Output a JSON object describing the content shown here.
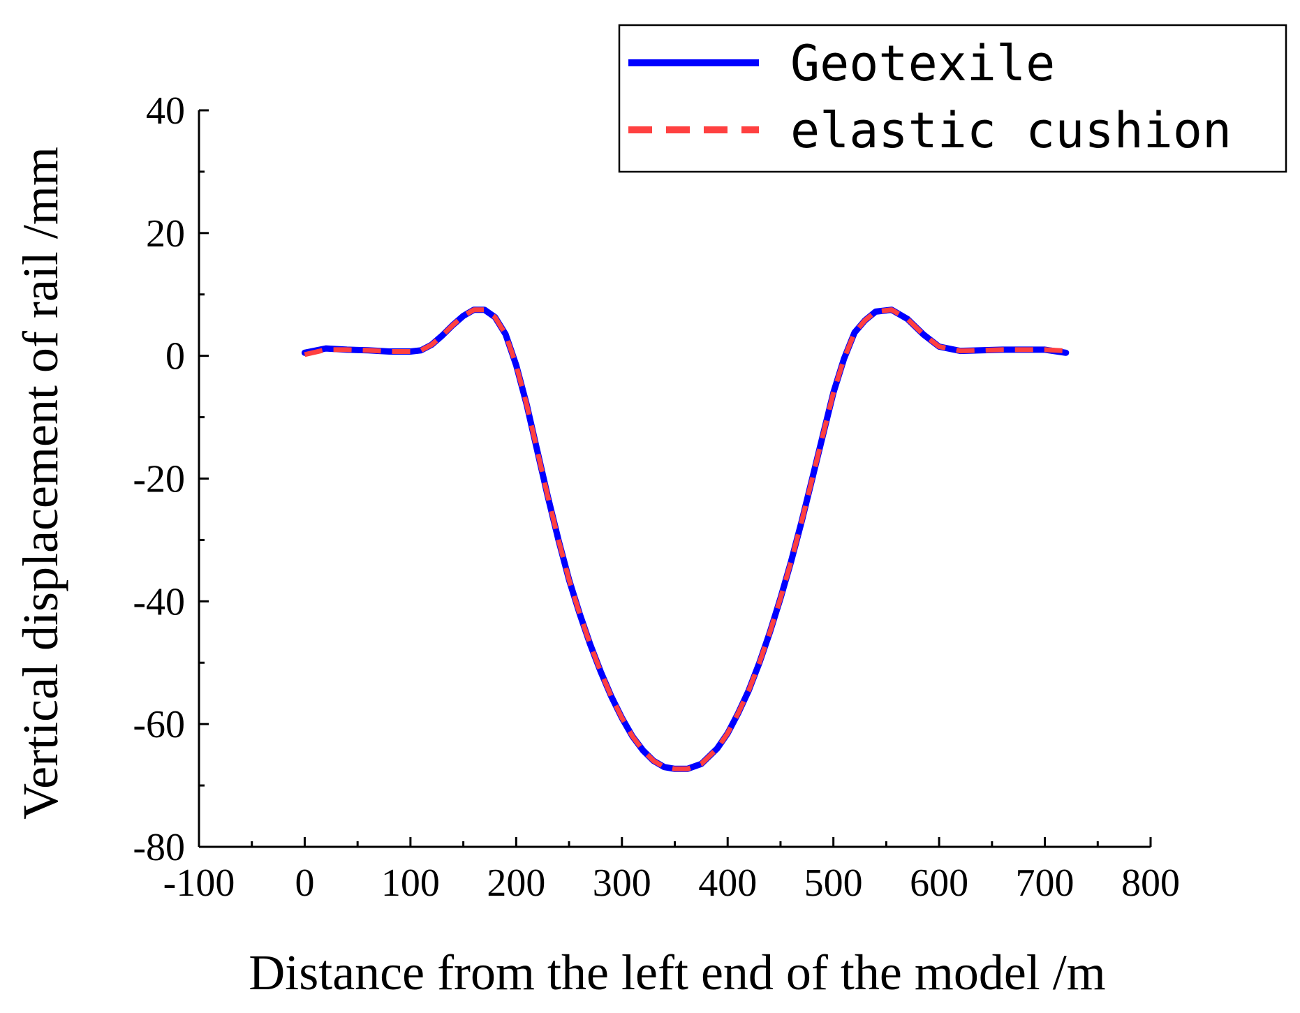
{
  "chart_data": {
    "type": "line",
    "xlabel": "Distance from the left end of the model /m",
    "ylabel": "Vertical displacement of rail /mm",
    "xlim": [
      -100,
      800
    ],
    "ylim": [
      -80,
      40
    ],
    "x_ticks": [
      -100,
      0,
      100,
      200,
      300,
      400,
      500,
      600,
      700,
      800
    ],
    "y_ticks": [
      40,
      20,
      0,
      -20,
      -40,
      -60,
      -80
    ],
    "x_tick_labels": [
      "-100",
      "0",
      "100",
      "200",
      "300",
      "400",
      "500",
      "600",
      "700",
      "800"
    ],
    "y_tick_labels": [
      "40",
      "20",
      "0",
      "-20",
      "-40",
      "-60",
      "-80"
    ],
    "grid": false,
    "legend_position": "top-right",
    "series": [
      {
        "name": "Geotexile",
        "color": "#0000ff",
        "style": "solid",
        "x": [
          0,
          20,
          40,
          60,
          80,
          100,
          110,
          120,
          130,
          140,
          150,
          160,
          170,
          180,
          190,
          200,
          210,
          220,
          230,
          240,
          250,
          260,
          270,
          280,
          290,
          300,
          310,
          320,
          330,
          340,
          350,
          362,
          375,
          390,
          400,
          410,
          420,
          430,
          440,
          450,
          460,
          470,
          480,
          490,
          500,
          510,
          520,
          530,
          540,
          555,
          570,
          585,
          600,
          620,
          640,
          660,
          680,
          700,
          720
        ],
        "y": [
          0.5,
          1.2,
          1.0,
          0.9,
          0.7,
          0.7,
          0.9,
          1.8,
          3.3,
          5.0,
          6.5,
          7.5,
          7.5,
          6.3,
          3.5,
          -1.5,
          -8.0,
          -15.5,
          -23.0,
          -30.0,
          -36.5,
          -42.0,
          -47.0,
          -51.5,
          -55.5,
          -59.0,
          -62.0,
          -64.3,
          -66.0,
          -67.0,
          -67.3,
          -67.3,
          -66.5,
          -64.0,
          -61.5,
          -58.2,
          -54.5,
          -50.0,
          -45.0,
          -39.5,
          -33.5,
          -27.0,
          -20.0,
          -13.0,
          -6.0,
          -0.5,
          3.8,
          5.8,
          7.2,
          7.5,
          6.0,
          3.5,
          1.5,
          0.8,
          0.9,
          1.0,
          1.0,
          1.0,
          0.5
        ]
      },
      {
        "name": "elastic cushion",
        "color": "#ff4040",
        "style": "dashed",
        "x": [
          0,
          20,
          40,
          60,
          80,
          100,
          110,
          120,
          130,
          140,
          150,
          160,
          170,
          180,
          190,
          200,
          210,
          220,
          230,
          240,
          250,
          260,
          270,
          280,
          290,
          300,
          310,
          320,
          330,
          340,
          350,
          362,
          375,
          390,
          400,
          410,
          420,
          430,
          440,
          450,
          460,
          470,
          480,
          490,
          500,
          510,
          520,
          530,
          540,
          555,
          570,
          585,
          600,
          620,
          640,
          660,
          680,
          700,
          720
        ],
        "y": [
          0.2,
          1.0,
          1.0,
          0.9,
          0.7,
          0.7,
          0.9,
          1.8,
          3.3,
          5.0,
          6.5,
          7.5,
          7.5,
          6.3,
          3.5,
          -1.5,
          -8.0,
          -15.5,
          -23.0,
          -30.0,
          -36.5,
          -42.0,
          -47.0,
          -51.5,
          -55.5,
          -59.0,
          -62.0,
          -64.3,
          -66.0,
          -67.0,
          -67.3,
          -67.3,
          -66.5,
          -64.0,
          -61.5,
          -58.2,
          -54.5,
          -50.0,
          -45.0,
          -39.5,
          -33.5,
          -27.0,
          -20.0,
          -13.0,
          -6.0,
          -0.5,
          3.8,
          5.8,
          7.2,
          7.5,
          6.0,
          3.5,
          1.5,
          0.8,
          0.9,
          1.0,
          1.0,
          1.0,
          0.8
        ]
      }
    ]
  }
}
